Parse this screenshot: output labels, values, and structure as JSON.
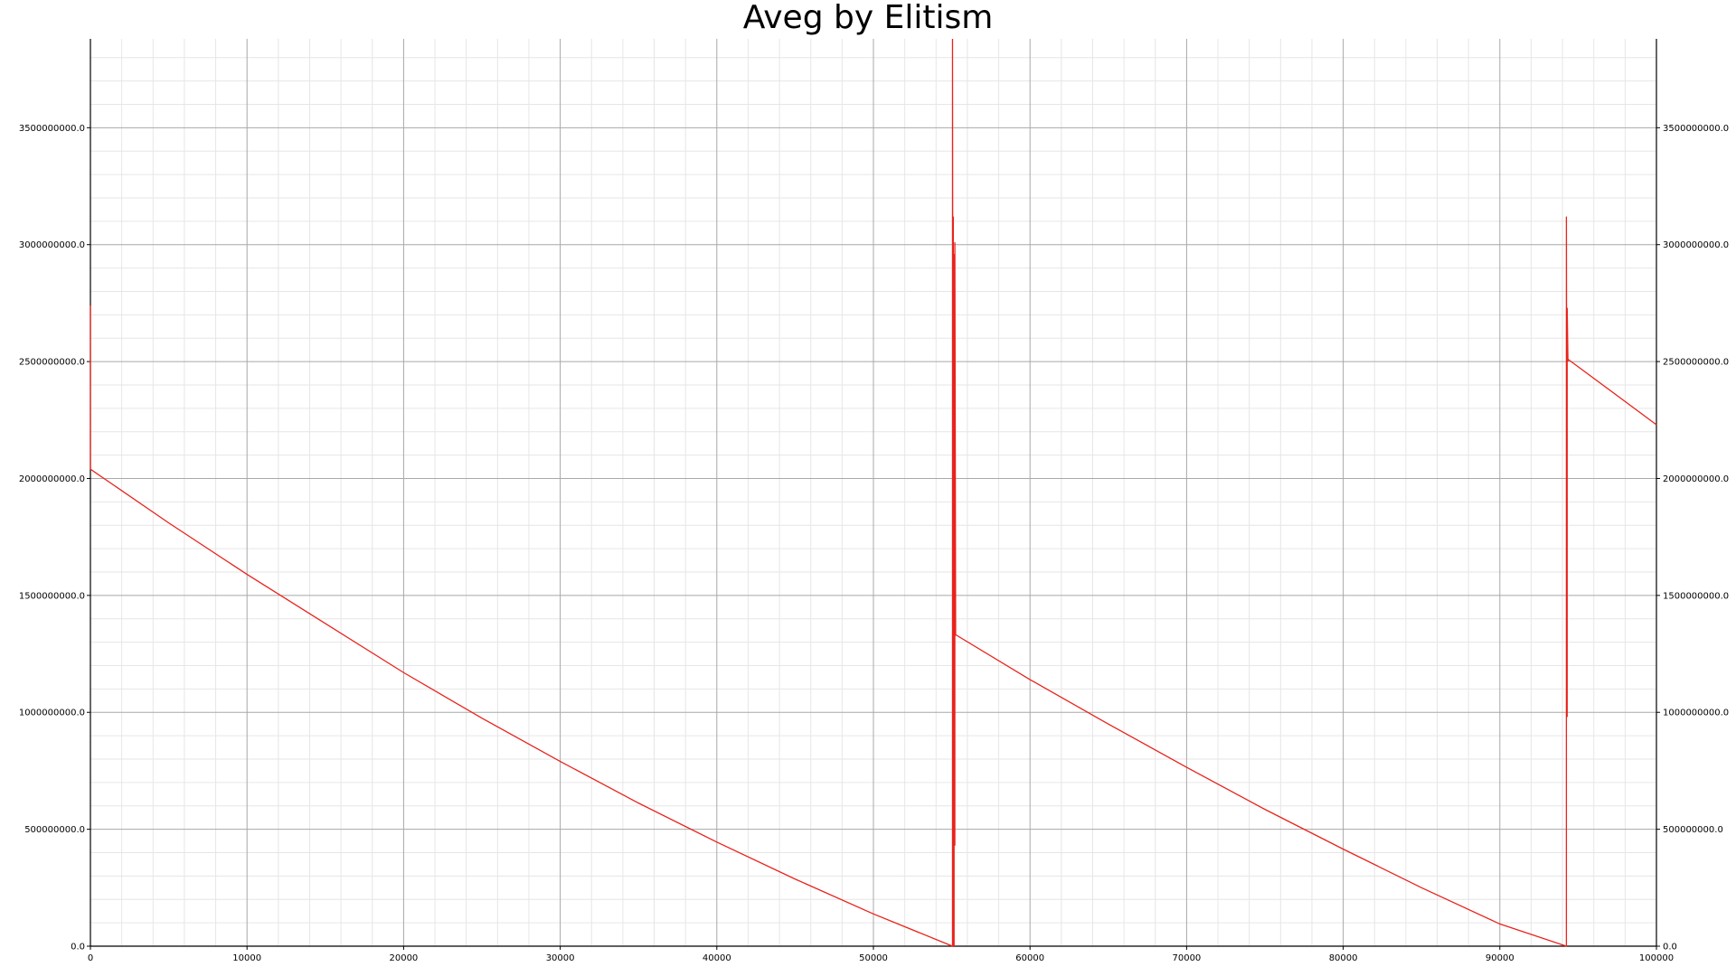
{
  "chart_data": {
    "type": "line",
    "title": "Aveg by Elitism",
    "xlabel": "",
    "ylabel": "",
    "xlim": [
      0,
      100000
    ],
    "ylim": [
      0,
      3880000000
    ],
    "grid": true,
    "minor_grid": true,
    "legend": "none",
    "x_ticks": [
      0,
      10000,
      20000,
      30000,
      40000,
      50000,
      60000,
      70000,
      80000,
      90000,
      100000
    ],
    "x_tick_labels": [
      "0",
      "10000",
      "20000",
      "30000",
      "40000",
      "50000",
      "60000",
      "70000",
      "80000",
      "90000",
      "100000"
    ],
    "y_ticks": [
      0,
      500000000,
      1000000000,
      1500000000,
      2000000000,
      2500000000,
      3000000000,
      3500000000
    ],
    "y_tick_labels": [
      "0.0",
      "500000000.0",
      "1000000000.0",
      "1500000000.0",
      "2000000000.0",
      "2500000000.0",
      "3000000000.0",
      "3500000000.0"
    ],
    "series": [
      {
        "color": "#e8231c",
        "x": [
          0,
          0,
          0,
          0,
          5000,
          10000,
          15000,
          20000,
          25000,
          30000,
          35000,
          40000,
          45000,
          50000,
          55050,
          55050,
          55100,
          55100,
          55150,
          55150,
          55200,
          55200,
          55250,
          55250,
          55300,
          60000,
          65000,
          70000,
          75000,
          80000,
          85000,
          90000,
          94250,
          94250,
          94300,
          94300,
          94350,
          94350,
          100000
        ],
        "y": [
          2040000000,
          2740000000,
          2040000000,
          2040000000,
          1810000000,
          1590000000,
          1380000000,
          1170000000,
          975000000,
          790000000,
          612000000,
          445000000,
          287000000,
          138000000,
          0,
          3880000000,
          0,
          3120000000,
          0,
          2960000000,
          430000000,
          3010000000,
          1340000000,
          1330000000,
          1330000000,
          1140000000,
          950000000,
          765000000,
          585000000,
          415000000,
          250000000,
          95000000,
          0,
          3120000000,
          980000000,
          2730000000,
          2500000000,
          2510000000,
          2230000000
        ]
      }
    ]
  }
}
